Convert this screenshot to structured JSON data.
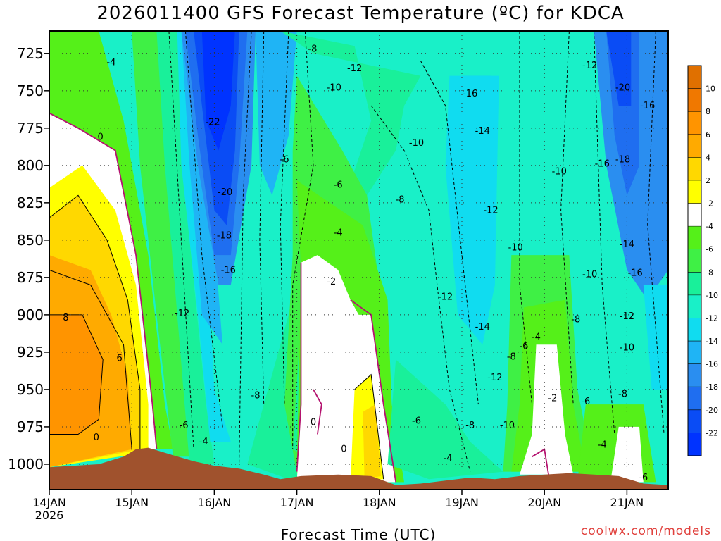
{
  "title": "2026011400 GFS Forecast Temperature (ºC) for KDCA",
  "watermark": "coolwx.com/models",
  "colors": {
    "c_m22": "#0033ff",
    "c_m20": "#0a4cf5",
    "c_m18": "#1f6ef0",
    "c_m16": "#2a8ef0",
    "c_m14": "#1fb4f5",
    "c_m12": "#10dcf0",
    "c_m10": "#19f0c8",
    "c_m8": "#19f09a",
    "c_m6": "#3ff045",
    "c_m4": "#55f019",
    "c_m2": "#ffffff",
    "c_2": "#ffff00",
    "c_4": "#ffd800",
    "c_6": "#ffaa00",
    "c_8": "#ff9400",
    "c_10": "#f07800",
    "ground": "#a0522d",
    "zero_line": "#b4136f"
  },
  "chart_data": {
    "type": "contour",
    "title": "2026011400 GFS Forecast Temperature (ºC) for KDCA",
    "xlabel": "Forecast Time (UTC)",
    "ylabel": "",
    "x_ticks": [
      "14JAN",
      "15JAN",
      "16JAN",
      "17JAN",
      "18JAN",
      "19JAN",
      "20JAN",
      "21JAN"
    ],
    "x_tick_sub": "2026",
    "y_ticks": [
      725,
      750,
      775,
      800,
      825,
      850,
      875,
      900,
      925,
      950,
      975,
      1000
    ],
    "y_reversed": true,
    "ylim": [
      1017,
      710
    ],
    "xlim_days": [
      0,
      7.5
    ],
    "colorbar": {
      "levels": [
        -24,
        -22,
        -20,
        -18,
        -16,
        -14,
        -12,
        -10,
        -8,
        -6,
        -4,
        -2,
        2,
        4,
        6,
        8,
        10,
        12
      ],
      "tick_labels": [
        "10",
        "8",
        "6",
        "4",
        "2",
        "-2",
        "-4",
        "-6",
        "-8",
        "-10",
        "-12",
        "-14",
        "-16",
        "-18",
        "-20",
        "-22"
      ]
    },
    "grid": true,
    "ground_surface": [
      [
        0.0,
        1002
      ],
      [
        0.3,
        1001
      ],
      [
        0.6,
        1000
      ],
      [
        0.9,
        995
      ],
      [
        1.05,
        990
      ],
      [
        1.2,
        989
      ],
      [
        1.5,
        994
      ],
      [
        1.75,
        998
      ],
      [
        2.0,
        1001
      ],
      [
        2.3,
        1003
      ],
      [
        2.6,
        1007
      ],
      [
        2.8,
        1010
      ],
      [
        3.05,
        1008
      ],
      [
        3.5,
        1007
      ],
      [
        3.9,
        1008
      ],
      [
        4.2,
        1014
      ],
      [
        4.5,
        1013
      ],
      [
        4.8,
        1011
      ],
      [
        5.1,
        1009
      ],
      [
        5.4,
        1010
      ],
      [
        5.7,
        1008
      ],
      [
        6.0,
        1007
      ],
      [
        6.3,
        1006
      ],
      [
        6.6,
        1007
      ],
      [
        6.9,
        1008
      ],
      [
        7.2,
        1013
      ],
      [
        7.5,
        1014
      ]
    ],
    "contour_labels": [
      {
        "text": "-4",
        "x": 0.75,
        "y": 731
      },
      {
        "text": "0",
        "x": 0.62,
        "y": 781
      },
      {
        "text": "8",
        "x": 0.2,
        "y": 902
      },
      {
        "text": "6",
        "x": 0.85,
        "y": 929
      },
      {
        "text": "0",
        "x": 0.57,
        "y": 982
      },
      {
        "text": "-6",
        "x": 1.63,
        "y": 974
      },
      {
        "text": "-4",
        "x": 1.87,
        "y": 985
      },
      {
        "text": "-12",
        "x": 1.61,
        "y": 899
      },
      {
        "text": "-16",
        "x": 2.17,
        "y": 870
      },
      {
        "text": "-18",
        "x": 2.12,
        "y": 847
      },
      {
        "text": "-20",
        "x": 2.13,
        "y": 818
      },
      {
        "text": "-22",
        "x": 1.98,
        "y": 771
      },
      {
        "text": "-8",
        "x": 3.19,
        "y": 722
      },
      {
        "text": "-12",
        "x": 3.7,
        "y": 735
      },
      {
        "text": "-10",
        "x": 3.45,
        "y": 748
      },
      {
        "text": "-6",
        "x": 2.85,
        "y": 796
      },
      {
        "text": "-6",
        "x": 3.5,
        "y": 813
      },
      {
        "text": "-8",
        "x": 4.25,
        "y": 823
      },
      {
        "text": "-4",
        "x": 3.5,
        "y": 845
      },
      {
        "text": "-2",
        "x": 3.42,
        "y": 878
      },
      {
        "text": "-8",
        "x": 2.5,
        "y": 954
      },
      {
        "text": "0",
        "x": 3.2,
        "y": 972
      },
      {
        "text": "0",
        "x": 3.57,
        "y": 990
      },
      {
        "text": "-10",
        "x": 4.45,
        "y": 785
      },
      {
        "text": "-12",
        "x": 4.8,
        "y": 888
      },
      {
        "text": "-6",
        "x": 4.45,
        "y": 971
      },
      {
        "text": "-4",
        "x": 4.83,
        "y": 996
      },
      {
        "text": "-16",
        "x": 5.1,
        "y": 752
      },
      {
        "text": "-14",
        "x": 5.25,
        "y": 777
      },
      {
        "text": "-12",
        "x": 5.35,
        "y": 830
      },
      {
        "text": "-14",
        "x": 5.25,
        "y": 908
      },
      {
        "text": "-12",
        "x": 5.4,
        "y": 942
      },
      {
        "text": "-8",
        "x": 5.1,
        "y": 974
      },
      {
        "text": "-10",
        "x": 5.55,
        "y": 974
      },
      {
        "text": "-10",
        "x": 5.65,
        "y": 855
      },
      {
        "text": "-10",
        "x": 6.18,
        "y": 804
      },
      {
        "text": "-8",
        "x": 6.38,
        "y": 903
      },
      {
        "text": "-4",
        "x": 5.9,
        "y": 915
      },
      {
        "text": "-6",
        "x": 5.75,
        "y": 921
      },
      {
        "text": "-8",
        "x": 5.6,
        "y": 928
      },
      {
        "text": "-2",
        "x": 6.1,
        "y": 956
      },
      {
        "text": "-6",
        "x": 6.5,
        "y": 958
      },
      {
        "text": "-10",
        "x": 6.55,
        "y": 873
      },
      {
        "text": "-12",
        "x": 6.55,
        "y": 733
      },
      {
        "text": "-20",
        "x": 6.95,
        "y": 748
      },
      {
        "text": "-16",
        "x": 7.25,
        "y": 760
      },
      {
        "text": "-18",
        "x": 6.95,
        "y": 796
      },
      {
        "text": "-16",
        "x": 6.7,
        "y": 799
      },
      {
        "text": "-14",
        "x": 7.0,
        "y": 853
      },
      {
        "text": "-16",
        "x": 7.1,
        "y": 872
      },
      {
        "text": "-12",
        "x": 7.0,
        "y": 901
      },
      {
        "text": "-10",
        "x": 7.0,
        "y": 922
      },
      {
        "text": "-8",
        "x": 6.95,
        "y": 953
      },
      {
        "text": "-4",
        "x": 6.7,
        "y": 987
      },
      {
        "text": "-6",
        "x": 7.2,
        "y": 1009
      }
    ]
  }
}
